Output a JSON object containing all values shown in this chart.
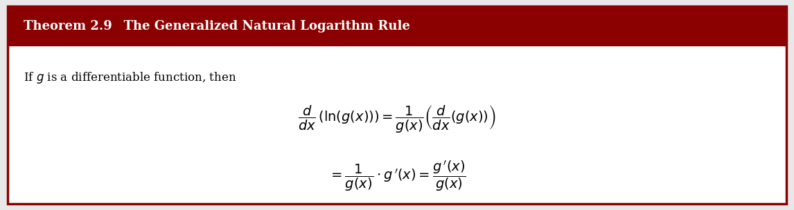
{
  "background_color": "#e8e8e8",
  "box_color": "#ffffff",
  "border_color": "#8b0000",
  "header_bg_color": "#8b0000",
  "header_text_color": "#ffffff",
  "theorem_label": "Theorem 2.9",
  "theorem_title": "  The Generalized Natural Logarithm Rule",
  "body_text": "If $g$ is a differentiable function, then",
  "formula_line1": "$\\dfrac{d}{dx}\\,(\\ln(g(x))) = \\dfrac{1}{g(x)}\\left(\\dfrac{d}{dx}(g(x))\\right)$",
  "formula_line2": "$= \\dfrac{1}{g(x)} \\cdot g\\,'(x) = \\dfrac{g\\,'(x)}{g(x)}$",
  "title_fontsize": 13,
  "body_fontsize": 12,
  "formula_fontsize": 14
}
